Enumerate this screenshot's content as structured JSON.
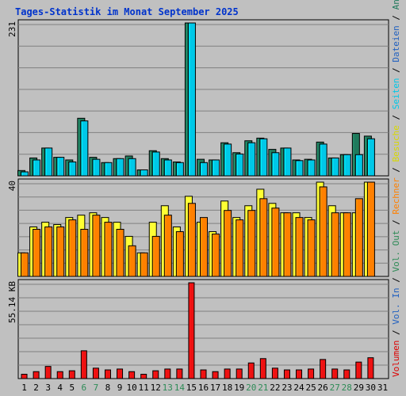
{
  "chart_data": {
    "type": "bar",
    "title": "Tages-Statistik im Monat September 2025",
    "categories": [
      "1",
      "2",
      "3",
      "4",
      "5",
      "6",
      "7",
      "8",
      "9",
      "10",
      "11",
      "12",
      "13",
      "14",
      "15",
      "16",
      "17",
      "18",
      "19",
      "20",
      "21",
      "22",
      "23",
      "24",
      "25",
      "26",
      "27",
      "28",
      "29",
      "30",
      "31"
    ],
    "weekend_days": [
      "6",
      "7",
      "13",
      "14",
      "20",
      "21",
      "27",
      "28"
    ],
    "legend": [
      {
        "text": "Volumen",
        "color": "#dd0000"
      },
      {
        "text": " / ",
        "color": "#000000"
      },
      {
        "text": "Vol. In",
        "color": "#2060c0"
      },
      {
        "text": " / ",
        "color": "#000000"
      },
      {
        "text": "Vol. Out",
        "color": "#2e8b57"
      },
      {
        "text": " / ",
        "color": "#000000"
      },
      {
        "text": "Rechner",
        "color": "#ff8000"
      },
      {
        "text": " / ",
        "color": "#000000"
      },
      {
        "text": "Besuche",
        "color": "#d8d800"
      },
      {
        "text": " / ",
        "color": "#000000"
      },
      {
        "text": "Seiten",
        "color": "#00c8e8"
      },
      {
        "text": " / ",
        "color": "#000000"
      },
      {
        "text": "Dateien",
        "color": "#2060c0"
      },
      {
        "text": " / ",
        "color": "#000000"
      },
      {
        "text": "Anfragen",
        "color": "#1f7a5c"
      }
    ],
    "panels": [
      {
        "name": "hits-files",
        "ymax_label": "231",
        "ymax": 231,
        "series": [
          {
            "name": "Anfragen",
            "color": "#1f7a5c",
            "values": [
              8,
              27,
              42,
              28,
              24,
              87,
              28,
              20,
              26,
              30,
              9,
              38,
              26,
              21,
              231,
              25,
              24,
              50,
              35,
              53,
              57,
              40,
              42,
              24,
              25,
              51,
              27,
              32,
              64,
              60
            ]
          },
          {
            "name": "Dateien",
            "color": "#00c8e8",
            "values": [
              6,
              24,
              42,
              28,
              21,
              83,
              25,
              20,
              26,
              26,
              9,
              36,
              24,
              20,
              231,
              20,
              24,
              48,
              33,
              50,
              56,
              35,
              42,
              23,
              24,
              48,
              27,
              32,
              32,
              56
            ]
          }
        ]
      },
      {
        "name": "visits",
        "ymax_label": "40",
        "ymax": 40,
        "series": [
          {
            "name": "Besuche",
            "color": "#ffff33",
            "values": [
              10,
              21,
              23,
              22,
              25,
              26,
              27,
              25,
              23,
              17,
              10,
              23,
              30,
              21,
              34,
              23,
              19,
              32,
              25,
              30,
              37,
              31,
              27,
              27,
              25,
              40,
              30,
              27,
              27,
              40
            ]
          },
          {
            "name": "Rechner",
            "color": "#ff8000",
            "values": [
              10,
              20,
              21,
              21,
              24,
              20,
              26,
              23,
              20,
              13,
              10,
              17,
              26,
              19,
              31,
              25,
              18,
              28,
              24,
              28,
              33,
              29,
              27,
              25,
              24,
              38,
              27,
              27,
              33,
              40
            ]
          }
        ]
      },
      {
        "name": "volume",
        "ymax_label": "55.14 KB",
        "ymax": 55.14,
        "series": [
          {
            "name": "Volumen",
            "color": "#ee1111",
            "values": [
              2.5,
              4,
              7,
              4,
              4.5,
              16,
              6,
              5,
              5.5,
              4,
              2.5,
              4.5,
              5.5,
              5.5,
              55.14,
              5,
              4,
              5.5,
              5.5,
              9,
              11.5,
              6,
              5,
              5,
              5.5,
              11,
              5.5,
              5,
              9.5,
              12
            ]
          }
        ]
      }
    ]
  }
}
